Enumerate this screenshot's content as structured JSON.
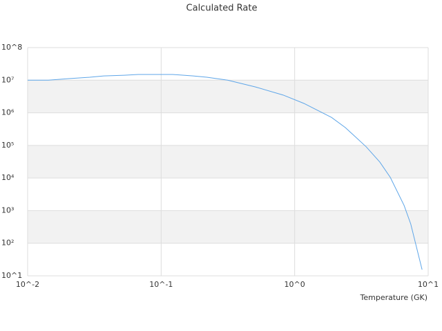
{
  "chart_data": {
    "type": "line",
    "title": "Calculated Rate",
    "x_label": "Temperature (GK)",
    "x": [
      0.01,
      0.0143,
      0.0204,
      0.0292,
      0.0371,
      0.0529,
      0.0672,
      0.122,
      0.174,
      0.22,
      0.315,
      0.509,
      0.82,
      1.17,
      1.89,
      2.4,
      3.43,
      4.34,
      5.2,
      6.6,
      7.4,
      9.0
    ],
    "series": [
      {
        "name": "Calculated Rate",
        "color": "#5da5e8",
        "values": [
          10000000,
          10000000,
          11200000,
          12300000,
          13500000,
          14200000,
          15000000,
          15000000,
          13500000,
          12300000,
          10000000,
          6200000,
          3500000,
          1950000,
          720000,
          350000,
          91000,
          31000,
          10500,
          1440,
          390,
          15.5
        ]
      }
    ],
    "xscale": "log",
    "yscale": "log",
    "xlim": [
      0.01,
      10
    ],
    "ylim": [
      10,
      100000000
    ],
    "xticks": [
      {
        "value": 0.01,
        "label": "10^-2"
      },
      {
        "value": 0.1,
        "label": "10^-1"
      },
      {
        "value": 1,
        "label": "10^0"
      },
      {
        "value": 10,
        "label": "10^1"
      }
    ],
    "yticks": [
      {
        "value": 10,
        "label": "10^1"
      },
      {
        "value": 100,
        "label": "10²"
      },
      {
        "value": 1000,
        "label": "10³"
      },
      {
        "value": 10000,
        "label": "10⁴"
      },
      {
        "value": 100000,
        "label": "10⁵"
      },
      {
        "value": 1000000,
        "label": "10⁶"
      },
      {
        "value": 10000000,
        "label": "10⁷"
      },
      {
        "value": 100000000,
        "label": "10^8"
      }
    ],
    "grid": true
  }
}
